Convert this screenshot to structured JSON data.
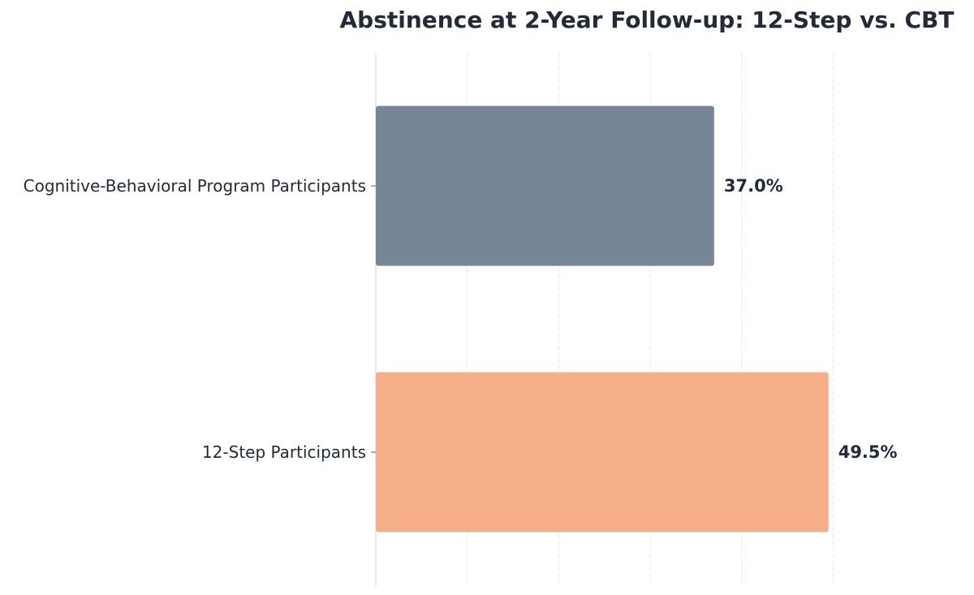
{
  "chart_data": {
    "type": "bar",
    "orientation": "horizontal",
    "title": "Abstinence at 2-Year Follow-up: 12-Step vs. CBT",
    "xlabel": "",
    "ylabel": "",
    "xlim": [
      0,
      50
    ],
    "grid": true,
    "legend": "none",
    "categories": [
      "Cognitive-Behavioral Program Participants",
      "12-Step Participants"
    ],
    "values": [
      37.0,
      49.5
    ],
    "value_labels": [
      "37.0%",
      "49.5%"
    ],
    "colors": [
      "#778599",
      "#f5ae87"
    ],
    "text_color": "#222b3a",
    "grid_color": "#e2e5ea"
  }
}
